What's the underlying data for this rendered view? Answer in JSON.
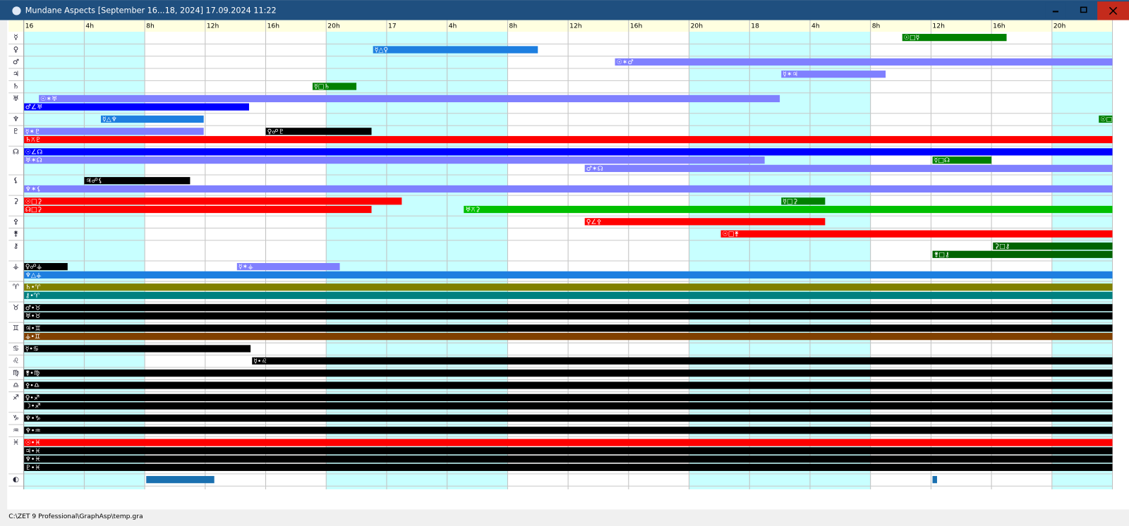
{
  "window": {
    "title": "Mundane Aspects [September 16...18, 2024]  17.09.2024 11:22"
  },
  "status_bar": {
    "path": "C:\\ZET 9 Professional\\GraphAsp\\temp.gra"
  },
  "timeline": {
    "xlim": [
      0,
      72
    ],
    "ticks": [
      {
        "value": 0,
        "label": "16"
      },
      {
        "value": 4,
        "label": "4h"
      },
      {
        "value": 8,
        "label": "8h"
      },
      {
        "value": 12,
        "label": "12h"
      },
      {
        "value": 16,
        "label": "16h"
      },
      {
        "value": 20,
        "label": "20h"
      },
      {
        "value": 24,
        "label": "17"
      },
      {
        "value": 28,
        "label": "4h"
      },
      {
        "value": 32,
        "label": "8h"
      },
      {
        "value": 36,
        "label": "12h"
      },
      {
        "value": 40,
        "label": "16h"
      },
      {
        "value": 44,
        "label": "20h"
      },
      {
        "value": 48,
        "label": "18"
      },
      {
        "value": 52,
        "label": "4h"
      },
      {
        "value": 56,
        "label": "8h"
      },
      {
        "value": 60,
        "label": "12h"
      },
      {
        "value": 64,
        "label": "16h"
      },
      {
        "value": 68,
        "label": "20h"
      }
    ],
    "night_shading": [
      [
        0,
        8
      ],
      [
        20,
        32
      ],
      [
        44,
        56
      ],
      [
        68,
        72
      ]
    ],
    "rows": [
      {
        "symbol": "☿",
        "lines": [
          [
            {
              "label": "☉□☿",
              "start": 58.1,
              "end": 65,
              "color": "#008000"
            }
          ]
        ]
      },
      {
        "symbol": "♀",
        "lines": [
          [
            {
              "label": "☿△♀",
              "start": 23.1,
              "end": 34,
              "color": "#1e7fe0"
            }
          ]
        ]
      },
      {
        "symbol": "♂",
        "lines": [
          [
            {
              "label": "☉✶♂",
              "start": 39.1,
              "end": 72,
              "color": "#8080ff"
            }
          ]
        ]
      },
      {
        "symbol": "♃",
        "lines": [
          [
            {
              "label": "☿✶♃",
              "start": 50.1,
              "end": 57,
              "color": "#8080ff"
            }
          ]
        ]
      },
      {
        "symbol": "♄",
        "lines": [
          [
            {
              "label": "☿□♄",
              "start": 19.1,
              "end": 22,
              "color": "#008000"
            }
          ]
        ]
      },
      {
        "symbol": "♅",
        "lines": [
          [
            {
              "label": "☉✶♅",
              "start": 1,
              "end": 50,
              "color": "#8080ff"
            }
          ],
          [
            {
              "label": "♂∠♅",
              "start": 0,
              "end": 14.9,
              "color": "#0000ff"
            }
          ]
        ]
      },
      {
        "symbol": "♆",
        "lines": [
          [
            {
              "label": "☿△♆",
              "start": 5.1,
              "end": 11.9,
              "color": "#1e7fe0"
            },
            {
              "label": "☉□♆",
              "start": 71.1,
              "end": 72,
              "color": "#008000"
            }
          ]
        ]
      },
      {
        "symbol": "♇",
        "lines": [
          [
            {
              "label": "☿✶♇",
              "start": 0,
              "end": 11.9,
              "color": "#8080ff"
            },
            {
              "label": "♀☍♇",
              "start": 16,
              "end": 23,
              "color": "#000000"
            }
          ],
          [
            {
              "label": "♄⚻♇",
              "start": 0,
              "end": 72,
              "color": "#ff0000"
            }
          ]
        ]
      },
      {
        "symbol": "☊",
        "lines": [
          [
            {
              "label": "☉∠☊",
              "start": 0,
              "end": 72,
              "color": "#0000ff"
            }
          ],
          [
            {
              "label": "♅✶☊",
              "start": 0,
              "end": 49,
              "color": "#8080ff"
            },
            {
              "label": "☿□☊",
              "start": 60.1,
              "end": 64,
              "color": "#008000"
            }
          ],
          [
            {
              "label": "♂✶☊",
              "start": 37.1,
              "end": 72,
              "color": "#8080ff"
            }
          ]
        ]
      },
      {
        "symbol": "⚸",
        "lines": [
          [
            {
              "label": "♃☍⚸",
              "start": 4,
              "end": 11,
              "color": "#000000"
            }
          ],
          [
            {
              "label": "♆✶⚸",
              "start": 0,
              "end": 72,
              "color": "#8080ff"
            }
          ]
        ]
      },
      {
        "symbol": "⚳",
        "lines": [
          [
            {
              "label": "☉□⚳",
              "start": 0,
              "end": 25,
              "color": "#ff0000"
            },
            {
              "label": "☿□⚳",
              "start": 50.1,
              "end": 53,
              "color": "#008000"
            }
          ],
          [
            {
              "label": "☊□⚳",
              "start": 0,
              "end": 23,
              "color": "#ff0000"
            },
            {
              "label": "♅⚻⚳",
              "start": 29.1,
              "end": 72,
              "color": "#00c000"
            }
          ]
        ]
      },
      {
        "symbol": "⚴",
        "lines": [
          [
            {
              "label": "♀∠⚴",
              "start": 37.1,
              "end": 53,
              "color": "#ff0000"
            }
          ]
        ]
      },
      {
        "symbol": "⚵",
        "lines": [
          [
            {
              "label": "☉□⚵",
              "start": 46.1,
              "end": 72,
              "color": "#ff0000"
            }
          ]
        ]
      },
      {
        "symbol": "⚷",
        "lines": [
          [
            {
              "label": "⚳□⚷",
              "start": 64.1,
              "end": 72,
              "color": "#006400"
            }
          ],
          [
            {
              "label": "⚵□⚷",
              "start": 60.1,
              "end": 72,
              "color": "#006400"
            }
          ]
        ]
      },
      {
        "symbol": "⚶",
        "lines": [
          [
            {
              "label": "♀☍⚶",
              "start": 0,
              "end": 2.9,
              "color": "#000000"
            },
            {
              "label": "☿✶⚶",
              "start": 14.1,
              "end": 20.9,
              "color": "#8080ff"
            }
          ],
          [
            {
              "label": "♆△⚶",
              "start": 0,
              "end": 72,
              "color": "#1e7fe0"
            }
          ]
        ]
      },
      {
        "symbol": "♈",
        "lines": [
          [
            {
              "label": "♄•♈",
              "start": 0,
              "end": 72,
              "color": "#808000"
            }
          ],
          [
            {
              "label": "⚷•♈",
              "start": 0,
              "end": 72,
              "color": "#008080"
            }
          ]
        ]
      },
      {
        "symbol": "♉",
        "lines": [
          [
            {
              "label": "♂•♉",
              "start": 0,
              "end": 72,
              "color": "#000000"
            }
          ],
          [
            {
              "label": "♅•♉",
              "start": 0,
              "end": 72,
              "color": "#000000"
            }
          ]
        ]
      },
      {
        "symbol": "♊",
        "lines": [
          [
            {
              "label": "♃•♊",
              "start": 0,
              "end": 72,
              "color": "#000000"
            }
          ],
          [
            {
              "label": "⚶•♊",
              "start": 0,
              "end": 72,
              "color": "#804000"
            }
          ]
        ]
      },
      {
        "symbol": "♋",
        "lines": [
          [
            {
              "label": "☿•♋",
              "start": 0,
              "end": 15,
              "color": "#000000"
            }
          ]
        ]
      },
      {
        "symbol": "♌",
        "lines": [
          [
            {
              "label": "☿•♌",
              "start": 15.1,
              "end": 72,
              "color": "#000000"
            }
          ]
        ]
      },
      {
        "symbol": "♍",
        "lines": [
          [
            {
              "label": "⚵•♍",
              "start": 0,
              "end": 72,
              "color": "#000000"
            }
          ]
        ]
      },
      {
        "symbol": "♎",
        "lines": [
          [
            {
              "label": "⚴•♎",
              "start": 0,
              "end": 72,
              "color": "#000000"
            }
          ]
        ]
      },
      {
        "symbol": "♐",
        "lines": [
          [
            {
              "label": "♀•♐",
              "start": 0,
              "end": 72,
              "color": "#000000"
            }
          ],
          [
            {
              "label": "☽•♐",
              "start": 0,
              "end": 72,
              "color": "#000000"
            }
          ]
        ]
      },
      {
        "symbol": "♑",
        "lines": [
          [
            {
              "label": "♆•♑",
              "start": 0,
              "end": 72,
              "color": "#000000"
            }
          ]
        ]
      },
      {
        "symbol": "♒",
        "lines": [
          [
            {
              "label": "♆•♒",
              "start": 0,
              "end": 72,
              "color": "#000000"
            }
          ]
        ]
      },
      {
        "symbol": "♓",
        "lines": [
          [
            {
              "label": "☉•♓",
              "start": 0,
              "end": 72,
              "color": "#ff0000"
            }
          ],
          [
            {
              "label": "♃•♓",
              "start": 0,
              "end": 72,
              "color": "#000000"
            }
          ],
          [
            {
              "label": "♆•♓",
              "start": 0,
              "end": 72,
              "color": "#000000"
            }
          ],
          [
            {
              "label": "♇•♓",
              "start": 0,
              "end": 72,
              "color": "#000000"
            }
          ]
        ]
      },
      {
        "symbol": "◐",
        "lines": [
          [
            {
              "start": 8.1,
              "end": 12.6,
              "color": "#1a70b0"
            },
            {
              "start": 60.1,
              "end": 60.4,
              "color": "#1a70b0"
            }
          ]
        ]
      }
    ]
  }
}
